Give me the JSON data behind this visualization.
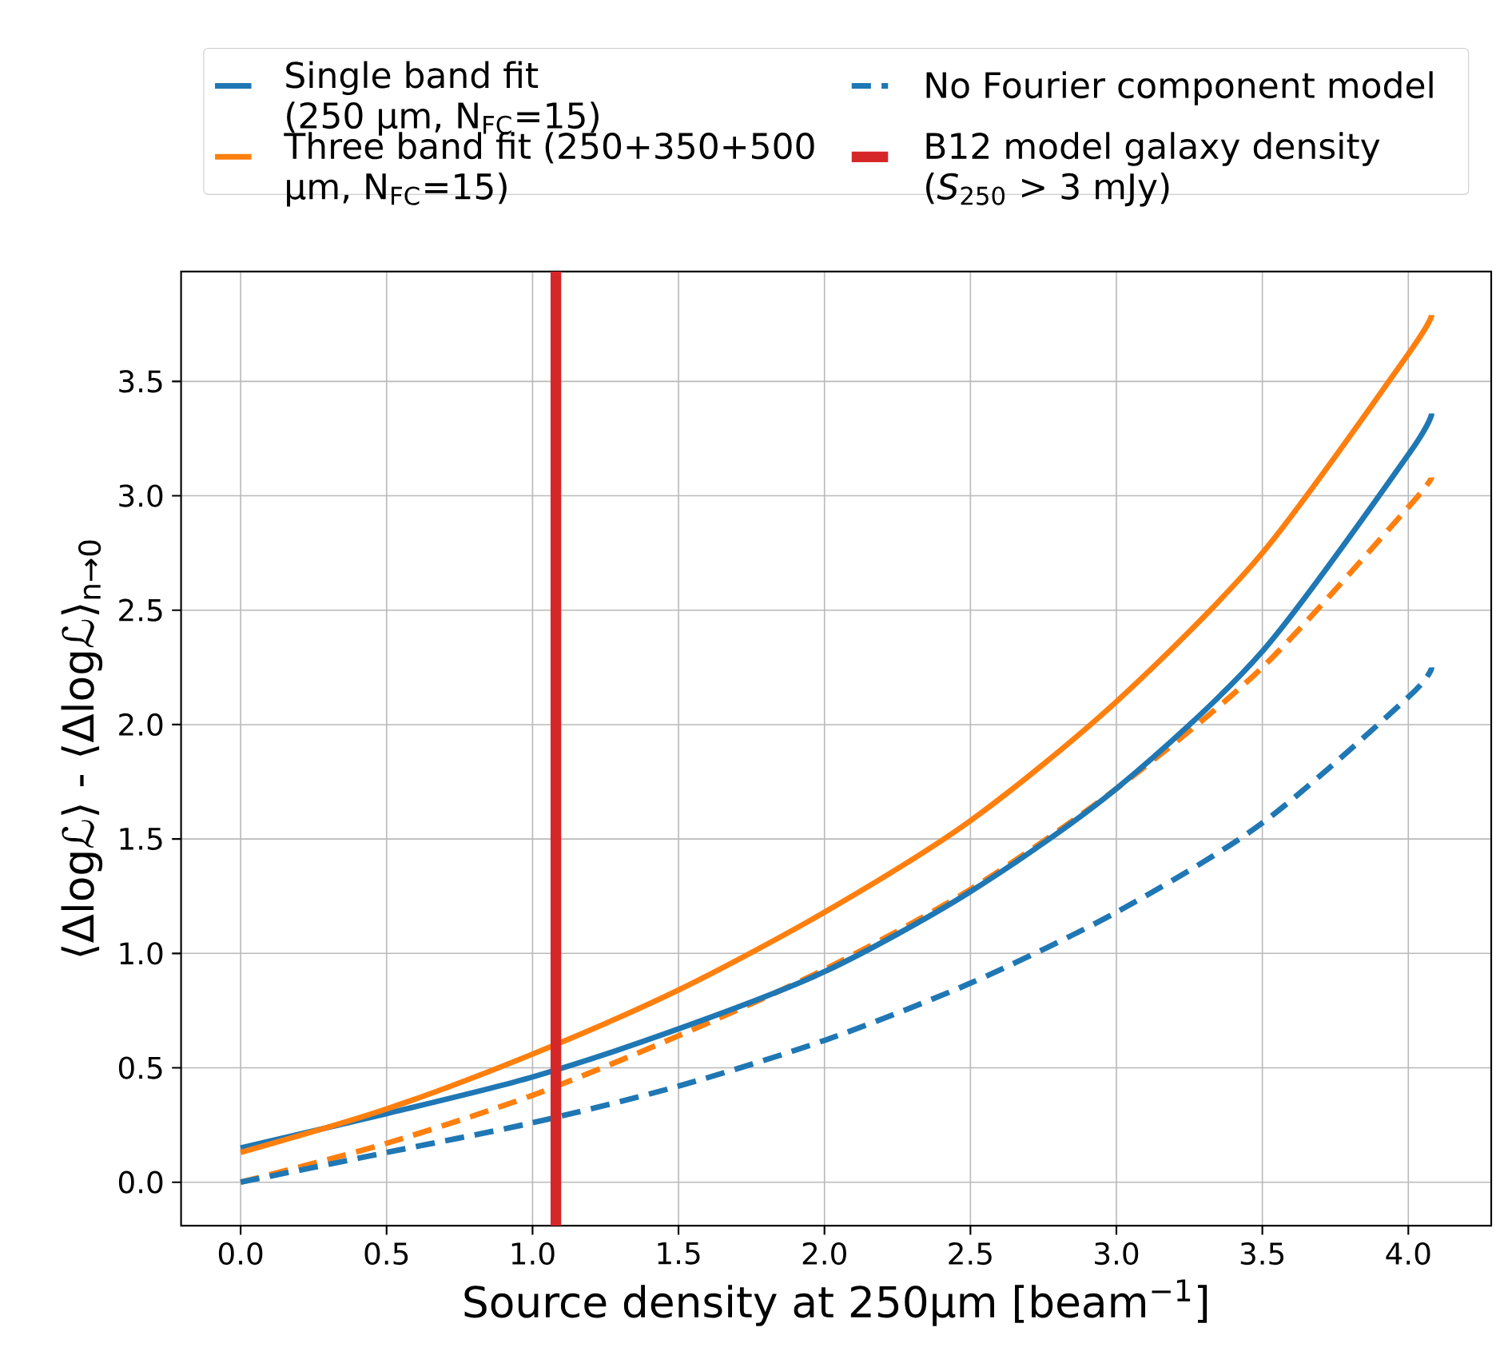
{
  "chart_data": {
    "type": "line",
    "xlabel": "Source density at 250μm [beam$^{−1}$]",
    "ylabel": "⟨Δlogℒ⟩ - ⟨Δlogℒ⟩$_{n→0}$",
    "x": [
      0,
      0.5,
      1,
      1.5,
      2,
      2.5,
      3,
      3.5,
      4,
      4.08
    ],
    "series": [
      {
        "color": "#ff7f0e",
        "line_style": "dashed",
        "values": [
          0.0,
          0.17,
          0.38,
          0.64,
          0.93,
          1.28,
          1.72,
          2.25,
          2.95,
          3.08
        ]
      },
      {
        "name": "Single band fit (250 μm, N$_{FC}$=15)",
        "color": "#1f77b4",
        "line_style": "solid",
        "values": [
          0.15,
          0.3,
          0.46,
          0.67,
          0.92,
          1.27,
          1.72,
          2.32,
          3.18,
          3.36
        ]
      },
      {
        "name": "Three band fit (250+350+500 μm, N$_{FC}$=15)",
        "color": "#ff7f0e",
        "line_style": "solid",
        "values": [
          0.13,
          0.32,
          0.56,
          0.84,
          1.18,
          1.58,
          2.1,
          2.75,
          3.62,
          3.79
        ]
      },
      {
        "name": "No Fourier component model",
        "color": "#1f77b4",
        "line_style": "dashed",
        "values": [
          0.0,
          0.13,
          0.26,
          0.42,
          0.62,
          0.87,
          1.18,
          1.57,
          2.12,
          2.25
        ]
      }
    ],
    "ref_lines": [
      {
        "axis": "x",
        "value": 1.08,
        "label": "B12 model galaxy density (*S*$_{250}$ > 3 mJy)",
        "color": "#d62728",
        "line_style": "solid"
      }
    ],
    "xlim": [
      -0.204,
      4.284
    ],
    "ylim": [
      -0.19,
      3.98
    ],
    "xticks": [
      {
        "value": 0,
        "label": "0.0"
      },
      {
        "value": 0.5,
        "label": "0.5"
      },
      {
        "value": 1,
        "label": "1.0"
      },
      {
        "value": 1.5,
        "label": "1.5"
      },
      {
        "value": 2,
        "label": "2.0"
      },
      {
        "value": 2.5,
        "label": "2.5"
      },
      {
        "value": 3,
        "label": "3.0"
      },
      {
        "value": 3.5,
        "label": "3.5"
      },
      {
        "value": 4,
        "label": "4.0"
      }
    ],
    "yticks": [
      {
        "value": 0,
        "label": "0.0"
      },
      {
        "value": 0.5,
        "label": "0.5"
      },
      {
        "value": 1,
        "label": "1.0"
      },
      {
        "value": 1.5,
        "label": "1.5"
      },
      {
        "value": 2,
        "label": "2.0"
      },
      {
        "value": 2.5,
        "label": "2.5"
      },
      {
        "value": 3,
        "label": "3.0"
      },
      {
        "value": 3.5,
        "label": "3.5"
      }
    ],
    "grid": true,
    "legend": "top"
  }
}
